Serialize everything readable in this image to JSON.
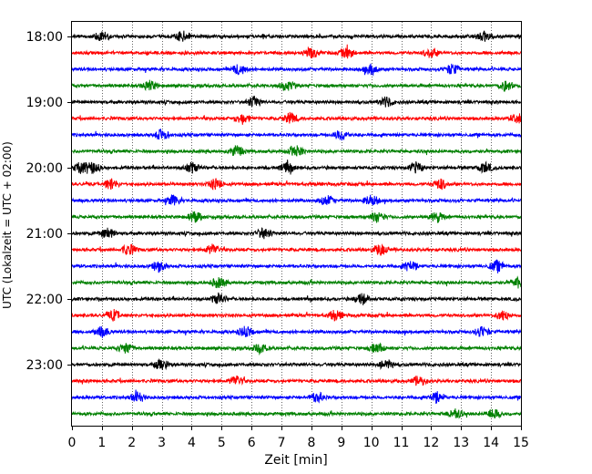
{
  "chart_data": {
    "type": "line",
    "subtype": "helicorder",
    "xlabel": "Zeit  [min]",
    "ylabel": "UTC (Lokalzeit = UTC + 02:00)",
    "xlim": [
      0,
      15
    ],
    "x_ticks": [
      0,
      1,
      2,
      3,
      4,
      5,
      6,
      7,
      8,
      9,
      10,
      11,
      12,
      13,
      14,
      15
    ],
    "y_tick_labels": [
      "18:00",
      "19:00",
      "20:00",
      "21:00",
      "22:00",
      "23:00"
    ],
    "grid": "vertical dotted at each minute",
    "line_interval_min": 15,
    "color_cycle": [
      "#000000",
      "#ff0000",
      "#0000ff",
      "#008000"
    ],
    "traces": [
      {
        "start": "18:00",
        "events_min": [
          1.0,
          3.7,
          13.8
        ]
      },
      {
        "start": "18:15",
        "events_min": [
          8.0,
          9.2,
          12.0
        ]
      },
      {
        "start": "18:30",
        "events_min": [
          5.6,
          10.0,
          12.7
        ]
      },
      {
        "start": "18:45",
        "events_min": [
          2.6,
          7.2,
          14.5
        ]
      },
      {
        "start": "19:00",
        "events_min": [
          6.1,
          10.5
        ]
      },
      {
        "start": "19:15",
        "events_min": [
          5.7,
          7.3,
          14.9
        ]
      },
      {
        "start": "19:30",
        "events_min": [
          3.0,
          9.0
        ]
      },
      {
        "start": "19:45",
        "events_min": [
          5.5,
          7.5
        ]
      },
      {
        "start": "20:00",
        "events_min": [
          0.3,
          0.7,
          4.0,
          7.2,
          11.5,
          13.8
        ]
      },
      {
        "start": "20:15",
        "events_min": [
          1.3,
          4.8,
          12.3
        ]
      },
      {
        "start": "20:30",
        "events_min": [
          3.4,
          8.5,
          10.0
        ]
      },
      {
        "start": "20:45",
        "events_min": [
          4.1,
          10.2,
          12.2
        ]
      },
      {
        "start": "21:00",
        "events_min": [
          6.4,
          1.2
        ]
      },
      {
        "start": "21:15",
        "events_min": [
          1.9,
          4.7,
          10.3
        ]
      },
      {
        "start": "21:30",
        "events_min": [
          2.9,
          11.3,
          14.2
        ]
      },
      {
        "start": "21:45",
        "events_min": [
          4.9,
          14.9
        ]
      },
      {
        "start": "22:00",
        "events_min": [
          4.9,
          9.7
        ]
      },
      {
        "start": "22:15",
        "events_min": [
          1.4,
          8.8,
          14.4
        ]
      },
      {
        "start": "22:30",
        "events_min": [
          1.0,
          5.8,
          13.7
        ]
      },
      {
        "start": "22:45",
        "events_min": [
          1.8,
          6.3,
          10.2
        ]
      },
      {
        "start": "23:00",
        "events_min": [
          3.0,
          10.5
        ]
      },
      {
        "start": "23:15",
        "events_min": [
          5.5,
          11.6
        ]
      },
      {
        "start": "23:30",
        "events_min": [
          2.2,
          8.2,
          12.2
        ]
      },
      {
        "start": "23:45",
        "events_min": [
          12.8,
          14.1
        ]
      }
    ]
  }
}
